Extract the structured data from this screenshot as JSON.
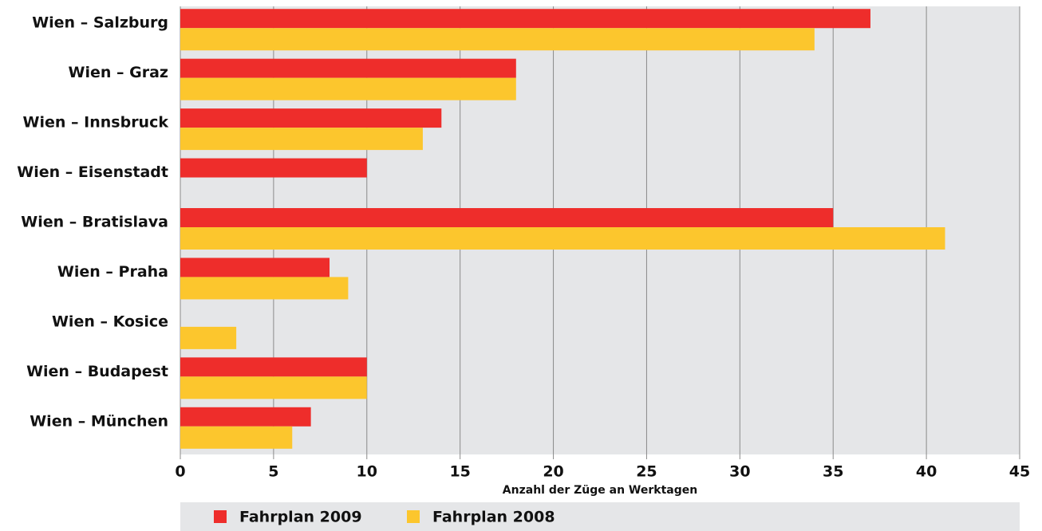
{
  "chart_data": {
    "type": "barh",
    "categories": [
      "Wien – Salzburg",
      "Wien – Graz",
      "Wien – Innsbruck",
      "Wien – Eisenstadt",
      "Wien – Bratislava",
      "Wien – Praha",
      "Wien – Kosice",
      "Wien – Budapest",
      "Wien – München"
    ],
    "series": [
      {
        "name": "Fahrplan 2009",
        "color": "#ee2d2b",
        "values": [
          37,
          18,
          14,
          10,
          35,
          8,
          null,
          10,
          7
        ]
      },
      {
        "name": "Fahrplan 2008",
        "color": "#fcc62d",
        "values": [
          34,
          18,
          13,
          null,
          41,
          9,
          3,
          10,
          6
        ]
      }
    ],
    "x_label": "Anzahl der Züge an Werktagen",
    "xlim": [
      0,
      45
    ],
    "xticks": [
      0,
      5,
      10,
      15,
      20,
      25,
      30,
      35,
      40,
      45
    ],
    "grid": true
  }
}
